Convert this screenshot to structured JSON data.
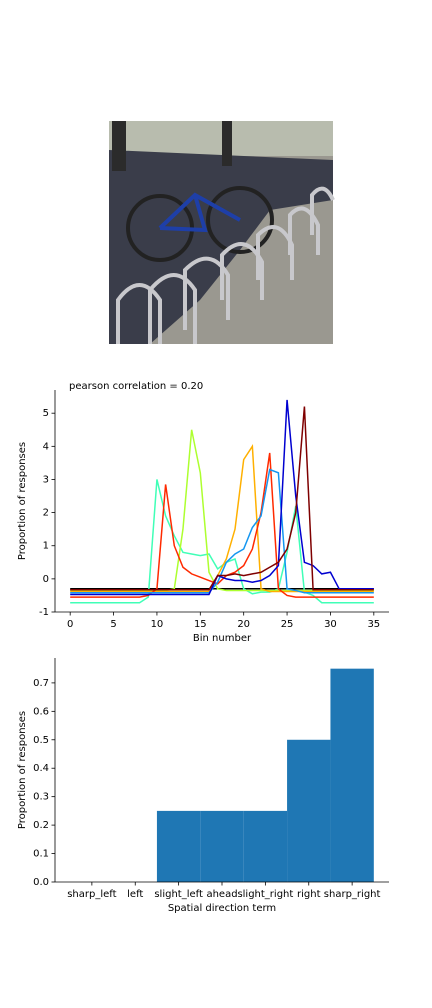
{
  "chart_data": [
    {
      "type": "line",
      "title": "pearson correlation = 0.20",
      "xlabel": "Bin number",
      "ylabel": "Proportion of responses",
      "x": [
        0,
        1,
        2,
        3,
        4,
        5,
        6,
        7,
        8,
        9,
        10,
        11,
        12,
        13,
        14,
        15,
        16,
        17,
        18,
        19,
        20,
        21,
        22,
        23,
        24,
        25,
        26,
        27,
        28,
        29,
        30,
        31,
        32,
        33,
        34,
        35
      ],
      "xlim": [
        -1.75,
        36.75
      ],
      "xticks": [
        0,
        5,
        10,
        15,
        20,
        25,
        30,
        35
      ],
      "ylim": [
        -1.0,
        5.7
      ],
      "yticks": [
        -1,
        0,
        1,
        2,
        3,
        4,
        5
      ],
      "series": [
        {
          "color": "#000000",
          "values": [
            -0.3,
            -0.3,
            -0.3,
            -0.3,
            -0.3,
            -0.3,
            -0.3,
            -0.3,
            -0.3,
            -0.3,
            -0.3,
            -0.3,
            -0.3,
            -0.3,
            -0.3,
            -0.3,
            -0.3,
            -0.3,
            -0.3,
            -0.3,
            -0.3,
            -0.3,
            -0.3,
            -0.3,
            -0.3,
            -0.3,
            -0.3,
            -0.3,
            -0.3,
            -0.3,
            -0.3,
            -0.3,
            -0.3,
            -0.3,
            -0.3,
            -0.3
          ]
        },
        {
          "color": "#40ffb7",
          "values": [
            -0.72,
            -0.72,
            -0.72,
            -0.72,
            -0.72,
            -0.72,
            -0.72,
            -0.72,
            -0.72,
            -0.55,
            3.0,
            1.9,
            1.3,
            0.8,
            0.75,
            0.7,
            0.75,
            0.3,
            0.5,
            0.6,
            -0.3,
            -0.45,
            -0.4,
            -0.4,
            -0.3,
            0.8,
            2.2,
            -0.4,
            -0.5,
            -0.72,
            -0.72,
            -0.72,
            -0.72,
            -0.72,
            -0.72,
            -0.72
          ]
        },
        {
          "color": "#adff2f",
          "values": [
            -0.35,
            -0.35,
            -0.35,
            -0.35,
            -0.35,
            -0.35,
            -0.35,
            -0.35,
            -0.35,
            -0.35,
            -0.35,
            -0.35,
            -0.3,
            1.5,
            4.5,
            3.2,
            0.2,
            -0.3,
            -0.35,
            -0.35,
            -0.35,
            -0.35,
            -0.35,
            -0.35,
            -0.35,
            -0.35,
            -0.35,
            -0.35,
            -0.35,
            -0.35,
            -0.35,
            -0.35,
            -0.35,
            -0.35,
            -0.35,
            -0.35
          ]
        },
        {
          "color": "#ffb000",
          "values": [
            -0.38,
            -0.38,
            -0.38,
            -0.38,
            -0.38,
            -0.38,
            -0.38,
            -0.38,
            -0.38,
            -0.38,
            -0.38,
            -0.38,
            -0.38,
            -0.38,
            -0.38,
            -0.38,
            -0.38,
            0.1,
            0.6,
            1.5,
            3.6,
            4.0,
            -0.3,
            -0.38,
            -0.38,
            -0.38,
            -0.38,
            -0.38,
            -0.38,
            -0.38,
            -0.38,
            -0.38,
            -0.38,
            -0.38,
            -0.38,
            -0.38
          ]
        },
        {
          "color": "#ff2a00",
          "values": [
            -0.55,
            -0.55,
            -0.55,
            -0.55,
            -0.55,
            -0.55,
            -0.55,
            -0.55,
            -0.55,
            -0.5,
            -0.3,
            2.85,
            1.0,
            0.35,
            0.15,
            0.05,
            -0.05,
            -0.15,
            0.1,
            0.2,
            0.4,
            0.9,
            2.0,
            3.8,
            -0.3,
            -0.5,
            -0.55,
            -0.55,
            -0.55,
            -0.55,
            -0.55,
            -0.55,
            -0.55,
            -0.55,
            -0.55,
            -0.55
          ]
        },
        {
          "color": "#1496f0",
          "values": [
            -0.42,
            -0.42,
            -0.42,
            -0.42,
            -0.42,
            -0.42,
            -0.42,
            -0.42,
            -0.42,
            -0.42,
            -0.42,
            -0.42,
            -0.42,
            -0.42,
            -0.42,
            -0.42,
            -0.42,
            -0.1,
            0.5,
            0.75,
            0.9,
            1.55,
            1.9,
            3.3,
            3.2,
            -0.3,
            -0.35,
            -0.42,
            -0.42,
            -0.42,
            -0.42,
            -0.42,
            -0.42,
            -0.42,
            -0.42,
            -0.42
          ]
        },
        {
          "color": "#0000d0",
          "values": [
            -0.47,
            -0.47,
            -0.47,
            -0.47,
            -0.47,
            -0.47,
            -0.47,
            -0.47,
            -0.47,
            -0.47,
            -0.47,
            -0.47,
            -0.47,
            -0.47,
            -0.47,
            -0.47,
            -0.47,
            0.1,
            0.0,
            -0.05,
            -0.05,
            -0.1,
            -0.05,
            0.1,
            0.4,
            5.4,
            2.5,
            0.5,
            0.4,
            0.15,
            0.2,
            -0.3,
            -0.3,
            -0.3,
            -0.3,
            -0.3
          ]
        },
        {
          "color": "#7f0000",
          "values": [
            -0.33,
            -0.33,
            -0.33,
            -0.33,
            -0.33,
            -0.33,
            -0.33,
            -0.33,
            -0.33,
            -0.33,
            -0.33,
            -0.33,
            -0.33,
            -0.33,
            -0.33,
            -0.33,
            -0.33,
            0.1,
            0.1,
            0.15,
            0.1,
            0.15,
            0.2,
            0.35,
            0.5,
            0.9,
            2.0,
            5.2,
            -0.33,
            -0.33,
            -0.33,
            -0.33,
            -0.33,
            -0.33,
            -0.33,
            -0.33
          ]
        }
      ]
    },
    {
      "type": "bar",
      "xlabel": "Spatial direction term",
      "ylabel": "Proportion of responses",
      "categories": [
        "sharp_left",
        "left",
        "slight_left",
        "ahead",
        "slight_right",
        "right",
        "sharp_right"
      ],
      "values": [
        0,
        0,
        0.25,
        0.25,
        0.25,
        0.5,
        0.75
      ],
      "color": "#1f77b4",
      "xlim": [
        -0.85,
        6.85
      ],
      "ylim": [
        0,
        0.7875
      ],
      "yticks": [
        {
          "value": 0,
          "label": "0.0"
        },
        {
          "value": 0.1,
          "label": "0.1"
        },
        {
          "value": 0.2,
          "label": "0.2"
        },
        {
          "value": 0.3,
          "label": "0.3"
        },
        {
          "value": 0.4,
          "label": "0.4"
        },
        {
          "value": 0.5,
          "label": "0.5"
        },
        {
          "value": 0.6,
          "label": "0.6"
        },
        {
          "value": 0.7,
          "label": "0.7"
        }
      ]
    }
  ]
}
